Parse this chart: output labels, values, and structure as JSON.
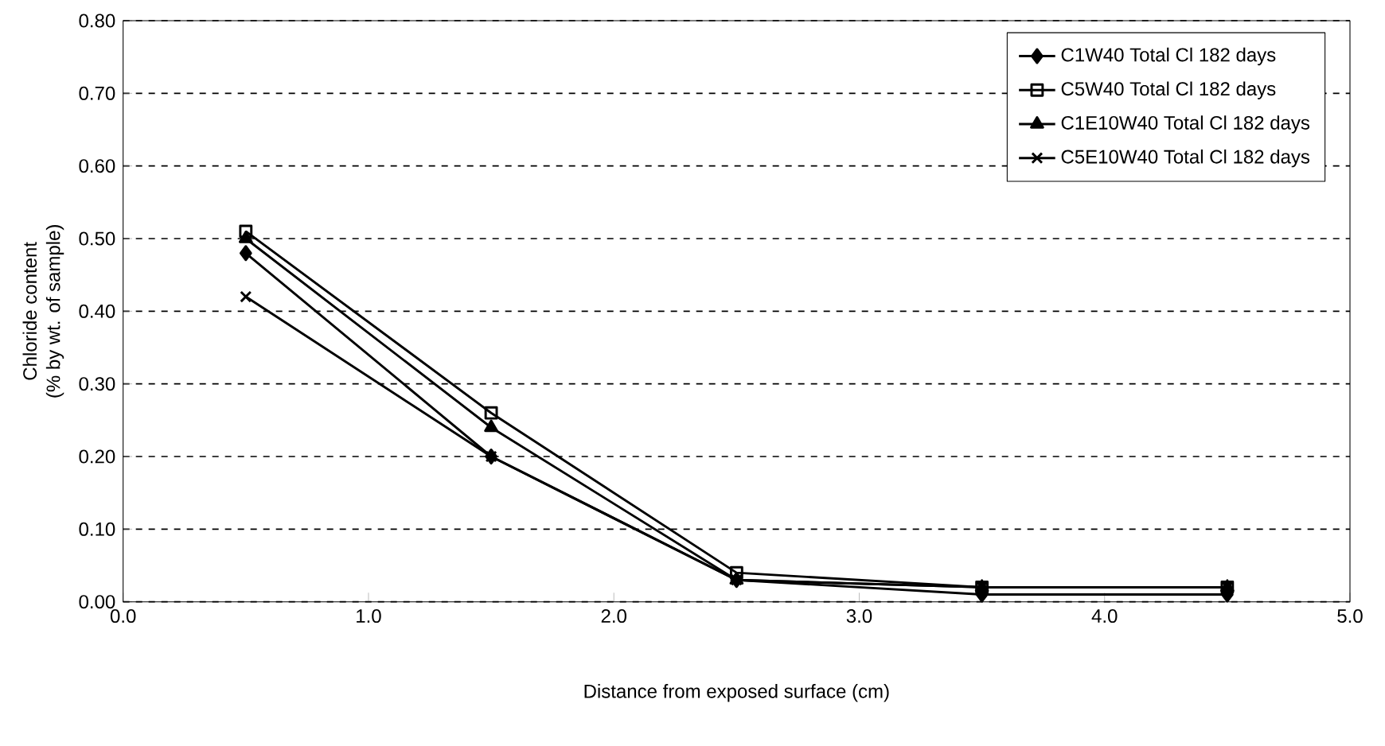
{
  "chart_data": {
    "type": "line",
    "xlabel": "Distance from exposed surface (cm)",
    "ylabel": "Chloride content\n(% by wt. of sample)",
    "x": [
      0.5,
      1.5,
      2.5,
      3.5,
      4.5
    ],
    "xlim": [
      0,
      5
    ],
    "xticks": [
      {
        "value": 0,
        "label": "0.0"
      },
      {
        "value": 1,
        "label": "1.0"
      },
      {
        "value": 2,
        "label": "2.0"
      },
      {
        "value": 3,
        "label": "3.0"
      },
      {
        "value": 4,
        "label": "4.0"
      },
      {
        "value": 5,
        "label": "5.0"
      }
    ],
    "ylim": [
      0,
      0.8
    ],
    "yticks": [
      {
        "value": 0,
        "label": "0.00"
      },
      {
        "value": 0.1,
        "label": "0.10"
      },
      {
        "value": 0.2,
        "label": "0.20"
      },
      {
        "value": 0.3,
        "label": "0.30"
      },
      {
        "value": 0.4,
        "label": "0.40"
      },
      {
        "value": 0.5,
        "label": "0.50"
      },
      {
        "value": 0.6,
        "label": "0.60"
      },
      {
        "value": 0.7,
        "label": "0.70"
      },
      {
        "value": 0.8,
        "label": "0.80"
      }
    ],
    "grid": "y",
    "legend": "top right",
    "line_style": "solid",
    "series": [
      {
        "name": "C1W40 Total Cl 182 days",
        "color": "#000000",
        "marker": "diamond",
        "values": [
          0.48,
          0.2,
          0.03,
          0.01,
          0.01
        ]
      },
      {
        "name": "C5W40 Total Cl 182 days",
        "color": "#000000",
        "marker": "square",
        "values": [
          0.51,
          0.26,
          0.04,
          0.02,
          0.02
        ]
      },
      {
        "name": "C1E10W40 Total Cl 182 days",
        "color": "#000000",
        "marker": "triangle",
        "values": [
          0.5,
          0.24,
          0.03,
          0.02,
          0.02
        ]
      },
      {
        "name": "C5E10W40 Total Cl 182 days",
        "color": "#000000",
        "marker": "cross",
        "values": [
          0.42,
          0.2,
          0.03,
          0.02,
          0.02
        ]
      }
    ]
  }
}
